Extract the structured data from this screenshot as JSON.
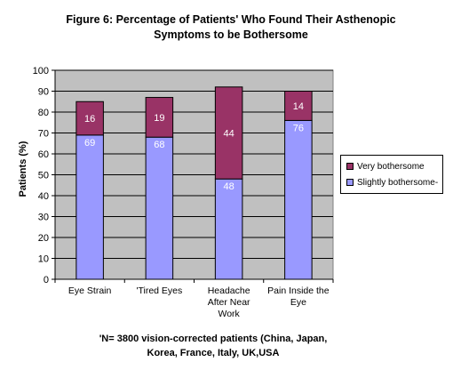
{
  "title_line1": "Figure 6: Percentage of Patients' Who Found Their Asthenopic",
  "title_line2": "Symptoms to be Bothersome",
  "footnote_line1": "'N= 3800 vision-corrected patients (China, Japan,",
  "footnote_line2": "Korea, France, Italy, UK,USA",
  "chart_data": {
    "type": "bar",
    "stacked": true,
    "categories": [
      [
        "Eye Strain"
      ],
      [
        "'Tired Eyes"
      ],
      [
        "Headache",
        "After Near",
        "Work"
      ],
      [
        "Pain Inside the",
        "Eye"
      ]
    ],
    "series": [
      {
        "name": "Slightly bothersome-",
        "values": [
          69,
          68,
          48,
          76
        ],
        "color": "#9999FF"
      },
      {
        "name": "Very bothersome",
        "values": [
          16,
          19,
          44,
          14
        ],
        "color": "#993366"
      }
    ],
    "ylabel": "Patients (%)",
    "ylim": [
      0,
      100
    ],
    "yticks": [
      0,
      10,
      20,
      30,
      40,
      50,
      60,
      70,
      80,
      90,
      100
    ],
    "grid": true,
    "plot_background": "#C0C0C0",
    "legend_position": "right",
    "data_labels": true
  }
}
